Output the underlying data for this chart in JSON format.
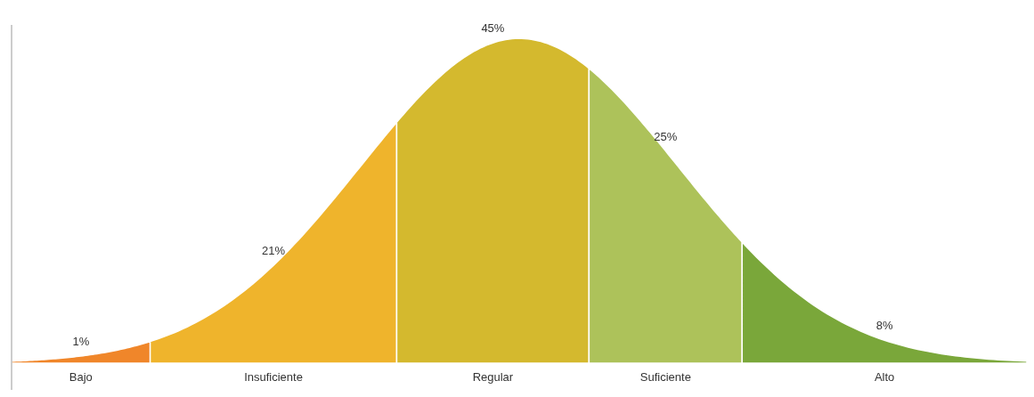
{
  "chart_data": {
    "type": "other",
    "categories": [
      "Bajo",
      "Insuficiente",
      "Regular",
      "Suficiente",
      "Alto"
    ],
    "values": [
      1,
      21,
      45,
      25,
      8
    ],
    "colors": [
      "#f0862a",
      "#efb42c",
      "#d4b92e",
      "#adc25a",
      "#7aa73a"
    ],
    "value_labels": [
      "1%",
      "21%",
      "45%",
      "25%",
      "8%"
    ]
  }
}
